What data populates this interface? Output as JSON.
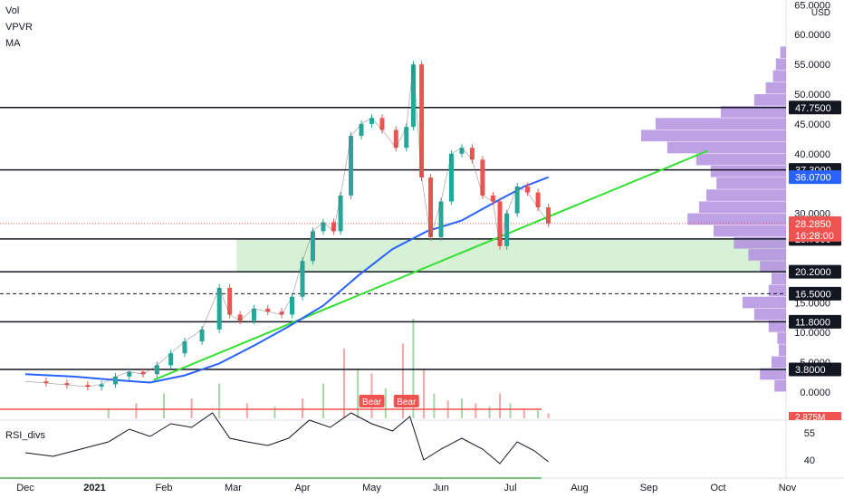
{
  "indicators": [
    "Vol",
    "VPVR",
    "MA"
  ],
  "currency": "USD",
  "chart_data": {
    "type": "candlestick",
    "y_axis_ticks": [
      {
        "label": "65.0000",
        "value": 65
      },
      {
        "label": "60.0000",
        "value": 60
      },
      {
        "label": "55.0000",
        "value": 55
      },
      {
        "label": "50.0000",
        "value": 50
      },
      {
        "label": "45.0000",
        "value": 45
      },
      {
        "label": "40.0000",
        "value": 40
      },
      {
        "label": "30.0000",
        "value": 30
      },
      {
        "label": "15.0000",
        "value": 15
      },
      {
        "label": "10.0000",
        "value": 10
      },
      {
        "label": "5.0000",
        "value": 5
      },
      {
        "label": "0.0000",
        "value": 0
      }
    ],
    "x_axis_ticks": [
      "Dec",
      "2021",
      "Feb",
      "Mar",
      "Apr",
      "May",
      "Jun",
      "Jul",
      "Aug",
      "Sep",
      "Oct",
      "Nov"
    ],
    "x_axis_months": [
      0,
      1,
      2,
      3,
      4,
      5,
      6,
      7,
      8,
      9,
      10,
      11
    ],
    "ylim": [
      -2,
      66
    ],
    "price_levels": [
      {
        "label": "47.7500",
        "value": 47.75,
        "dashed": false
      },
      {
        "label": "37.3000",
        "value": 37.3,
        "dashed": false
      },
      {
        "label": "25.7000",
        "value": 25.7,
        "dashed": false
      },
      {
        "label": "20.2000",
        "value": 20.2,
        "dashed": false
      },
      {
        "label": "16.5000",
        "value": 16.5,
        "dashed": true
      },
      {
        "label": "11.8000",
        "value": 11.8,
        "dashed": false
      },
      {
        "label": "3.8000",
        "value": 3.8,
        "dashed": false
      }
    ],
    "current_price": {
      "label": "28.2850",
      "value": 28.285,
      "countdown": "16:28:00",
      "color": "#ef5350"
    },
    "ma_last": {
      "label": "36.0700",
      "value": 36.07,
      "color": "#2962ff"
    },
    "volume_badge": {
      "label": "2.875M",
      "color": "#ef5350"
    },
    "price_series": [
      {
        "m": 0.0,
        "v": 1.8
      },
      {
        "m": 0.3,
        "v": 1.5
      },
      {
        "m": 0.6,
        "v": 1.2
      },
      {
        "m": 0.9,
        "v": 0.9
      },
      {
        "m": 1.1,
        "v": 1.3
      },
      {
        "m": 1.3,
        "v": 2.6
      },
      {
        "m": 1.5,
        "v": 3.4
      },
      {
        "m": 1.7,
        "v": 3.0
      },
      {
        "m": 1.9,
        "v": 4.5
      },
      {
        "m": 2.1,
        "v": 6.5
      },
      {
        "m": 2.3,
        "v": 8.5
      },
      {
        "m": 2.55,
        "v": 10.5
      },
      {
        "m": 2.8,
        "v": 17.5
      },
      {
        "m": 2.95,
        "v": 13.0
      },
      {
        "m": 3.1,
        "v": 12.0
      },
      {
        "m": 3.3,
        "v": 14.0
      },
      {
        "m": 3.5,
        "v": 13.5
      },
      {
        "m": 3.7,
        "v": 13.0
      },
      {
        "m": 3.85,
        "v": 16.0
      },
      {
        "m": 4.0,
        "v": 22.0
      },
      {
        "m": 4.15,
        "v": 27.0
      },
      {
        "m": 4.3,
        "v": 28.5
      },
      {
        "m": 4.45,
        "v": 27.0
      },
      {
        "m": 4.55,
        "v": 33.0
      },
      {
        "m": 4.7,
        "v": 43.0
      },
      {
        "m": 4.85,
        "v": 45.0
      },
      {
        "m": 5.0,
        "v": 46.0
      },
      {
        "m": 5.15,
        "v": 44.0
      },
      {
        "m": 5.35,
        "v": 41.0
      },
      {
        "m": 5.5,
        "v": 44.5
      },
      {
        "m": 5.6,
        "v": 55.0
      },
      {
        "m": 5.72,
        "v": 36.0
      },
      {
        "m": 5.85,
        "v": 26.0
      },
      {
        "m": 6.0,
        "v": 32.0
      },
      {
        "m": 6.15,
        "v": 40.0
      },
      {
        "m": 6.3,
        "v": 41.0
      },
      {
        "m": 6.45,
        "v": 39.0
      },
      {
        "m": 6.6,
        "v": 33.0
      },
      {
        "m": 6.75,
        "v": 32.0
      },
      {
        "m": 6.85,
        "v": 24.5
      },
      {
        "m": 6.95,
        "v": 30.0
      },
      {
        "m": 7.1,
        "v": 34.5
      },
      {
        "m": 7.25,
        "v": 33.5
      },
      {
        "m": 7.4,
        "v": 31.0
      },
      {
        "m": 7.55,
        "v": 28.3
      }
    ],
    "ma_series": [
      {
        "m": 0.0,
        "v": 3.0
      },
      {
        "m": 0.7,
        "v": 2.6
      },
      {
        "m": 1.3,
        "v": 2.0
      },
      {
        "m": 1.8,
        "v": 1.6
      },
      {
        "m": 2.3,
        "v": 2.8
      },
      {
        "m": 2.8,
        "v": 4.8
      },
      {
        "m": 3.3,
        "v": 7.8
      },
      {
        "m": 3.8,
        "v": 11.0
      },
      {
        "m": 4.3,
        "v": 14.5
      },
      {
        "m": 4.8,
        "v": 19.5
      },
      {
        "m": 5.3,
        "v": 24.0
      },
      {
        "m": 5.8,
        "v": 27.0
      },
      {
        "m": 6.3,
        "v": 28.8
      },
      {
        "m": 6.8,
        "v": 32.0
      },
      {
        "m": 7.2,
        "v": 34.5
      },
      {
        "m": 7.55,
        "v": 36.07
      }
    ],
    "trendline": {
      "from": {
        "m": 1.85,
        "v": 2.0
      },
      "to": {
        "m": 9.85,
        "v": 40.5
      },
      "color": "#33e033"
    },
    "demand_zone": {
      "from_m": 3.05,
      "v_low": 20.2,
      "v_high": 25.7
    },
    "vpvr_profile": [
      {
        "v": 57,
        "w": 0.04
      },
      {
        "v": 55,
        "w": 0.07
      },
      {
        "v": 53,
        "w": 0.09
      },
      {
        "v": 51,
        "w": 0.14
      },
      {
        "v": 49,
        "w": 0.22
      },
      {
        "v": 47,
        "w": 0.45
      },
      {
        "v": 45,
        "w": 0.9
      },
      {
        "v": 43,
        "w": 1.0
      },
      {
        "v": 41,
        "w": 0.82
      },
      {
        "v": 39,
        "w": 0.62
      },
      {
        "v": 37,
        "w": 0.52
      },
      {
        "v": 35,
        "w": 0.48
      },
      {
        "v": 33,
        "w": 0.55
      },
      {
        "v": 31,
        "w": 0.6
      },
      {
        "v": 29,
        "w": 0.68
      },
      {
        "v": 27,
        "w": 0.5
      },
      {
        "v": 25,
        "w": 0.36
      },
      {
        "v": 23,
        "w": 0.26
      },
      {
        "v": 21,
        "w": 0.18
      },
      {
        "v": 19,
        "w": 0.1
      },
      {
        "v": 17,
        "w": 0.12
      },
      {
        "v": 15,
        "w": 0.3
      },
      {
        "v": 13,
        "w": 0.22
      },
      {
        "v": 11,
        "w": 0.12
      },
      {
        "v": 9,
        "w": 0.06
      },
      {
        "v": 7,
        "w": 0.05
      },
      {
        "v": 5,
        "w": 0.1
      },
      {
        "v": 3,
        "w": 0.18
      },
      {
        "v": 1,
        "w": 0.08
      }
    ],
    "volume_series": [
      {
        "m": 1.2,
        "v": 0.1
      },
      {
        "m": 1.6,
        "v": 0.15
      },
      {
        "m": 2.0,
        "v": 0.25
      },
      {
        "m": 2.4,
        "v": 0.2
      },
      {
        "m": 2.8,
        "v": 0.35
      },
      {
        "m": 3.2,
        "v": 0.15
      },
      {
        "m": 3.6,
        "v": 0.12
      },
      {
        "m": 4.0,
        "v": 0.2
      },
      {
        "m": 4.3,
        "v": 0.35
      },
      {
        "m": 4.6,
        "v": 0.7
      },
      {
        "m": 4.8,
        "v": 0.5
      },
      {
        "m": 5.0,
        "v": 0.45
      },
      {
        "m": 5.2,
        "v": 0.3
      },
      {
        "m": 5.45,
        "v": 0.75
      },
      {
        "m": 5.6,
        "v": 1.0
      },
      {
        "m": 5.75,
        "v": 0.5
      },
      {
        "m": 5.9,
        "v": 0.25
      },
      {
        "m": 6.1,
        "v": 0.18
      },
      {
        "m": 6.3,
        "v": 0.2
      },
      {
        "m": 6.5,
        "v": 0.15
      },
      {
        "m": 6.7,
        "v": 0.12
      },
      {
        "m": 6.85,
        "v": 0.25
      },
      {
        "m": 7.0,
        "v": 0.15
      },
      {
        "m": 7.2,
        "v": 0.1
      },
      {
        "m": 7.4,
        "v": 0.08
      },
      {
        "m": 7.55,
        "v": 0.05
      }
    ],
    "rsi": {
      "label": "RSI_divs",
      "ticks": [
        {
          "label": "55",
          "value": 55
        },
        {
          "label": "40",
          "value": 40
        }
      ],
      "upper": 68,
      "lower": 30,
      "bear_labels": [
        "Bear",
        "Bear"
      ],
      "series": [
        {
          "m": 0.0,
          "v": 44
        },
        {
          "m": 0.4,
          "v": 42
        },
        {
          "m": 0.8,
          "v": 46
        },
        {
          "m": 1.2,
          "v": 50
        },
        {
          "m": 1.5,
          "v": 57
        },
        {
          "m": 1.8,
          "v": 53
        },
        {
          "m": 2.1,
          "v": 60
        },
        {
          "m": 2.4,
          "v": 58
        },
        {
          "m": 2.7,
          "v": 66
        },
        {
          "m": 2.95,
          "v": 52
        },
        {
          "m": 3.2,
          "v": 50
        },
        {
          "m": 3.5,
          "v": 48
        },
        {
          "m": 3.8,
          "v": 52
        },
        {
          "m": 4.1,
          "v": 62
        },
        {
          "m": 4.4,
          "v": 58
        },
        {
          "m": 4.7,
          "v": 66
        },
        {
          "m": 5.0,
          "v": 60
        },
        {
          "m": 5.3,
          "v": 56
        },
        {
          "m": 5.55,
          "v": 64
        },
        {
          "m": 5.75,
          "v": 40
        },
        {
          "m": 6.0,
          "v": 46
        },
        {
          "m": 6.3,
          "v": 52
        },
        {
          "m": 6.6,
          "v": 46
        },
        {
          "m": 6.85,
          "v": 38
        },
        {
          "m": 7.1,
          "v": 50
        },
        {
          "m": 7.35,
          "v": 45
        },
        {
          "m": 7.55,
          "v": 39
        }
      ]
    }
  }
}
